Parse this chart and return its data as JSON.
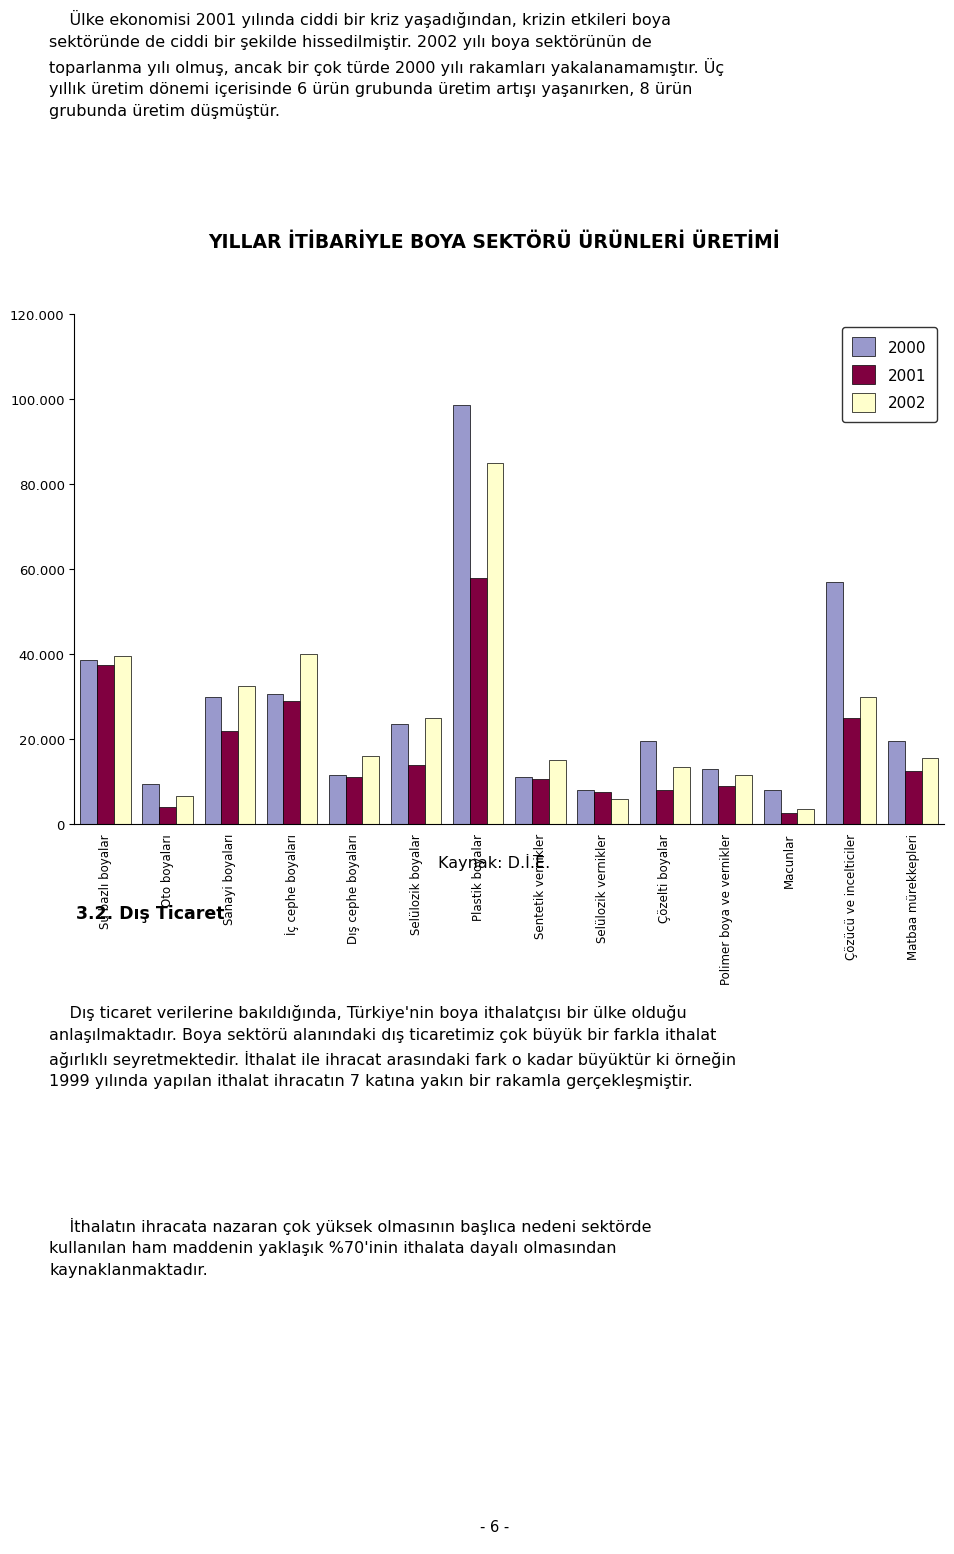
{
  "title": "YILLAR İTİBARİYLE BOYA SEKTÖRÜ ÜRÜNLERİ ÜRETİMİ",
  "source": "Kaynak: D.İ.E.",
  "page_number": "- 6 -",
  "categories": [
    "Su bazlı boyalar",
    "Oto boyaları",
    "Sanayi boyaları",
    "İç cephe boyaları",
    "Dış cephe boyaları",
    "Selülozik boyalar",
    "Plastik boyalar",
    "Sentetik vernikler",
    "Selülozik vernikler",
    "Çözelti boyalar",
    "Polimer boya ve vernikler",
    "Macunlar",
    "Çözücü ve incelticiler",
    "Matbaa mürekkepleri"
  ],
  "data_2000": [
    38500,
    9500,
    30000,
    30500,
    11500,
    23500,
    98500,
    11000,
    8000,
    19500,
    13000,
    8000,
    57000,
    19500
  ],
  "data_2001": [
    37500,
    4000,
    22000,
    29000,
    11000,
    14000,
    58000,
    10500,
    7500,
    8000,
    9000,
    2500,
    25000,
    12500
  ],
  "data_2002": [
    39500,
    6500,
    32500,
    40000,
    16000,
    25000,
    85000,
    15000,
    6000,
    13500,
    11500,
    3500,
    30000,
    15500
  ],
  "color_2000": "#9999cc",
  "color_2001": "#800040",
  "color_2002": "#ffffcc",
  "ylim": [
    0,
    120000
  ],
  "yticks": [
    0,
    20000,
    40000,
    60000,
    80000,
    100000,
    120000
  ],
  "bar_width": 0.27,
  "legend_labels": [
    "2000",
    "2001",
    "2002"
  ]
}
